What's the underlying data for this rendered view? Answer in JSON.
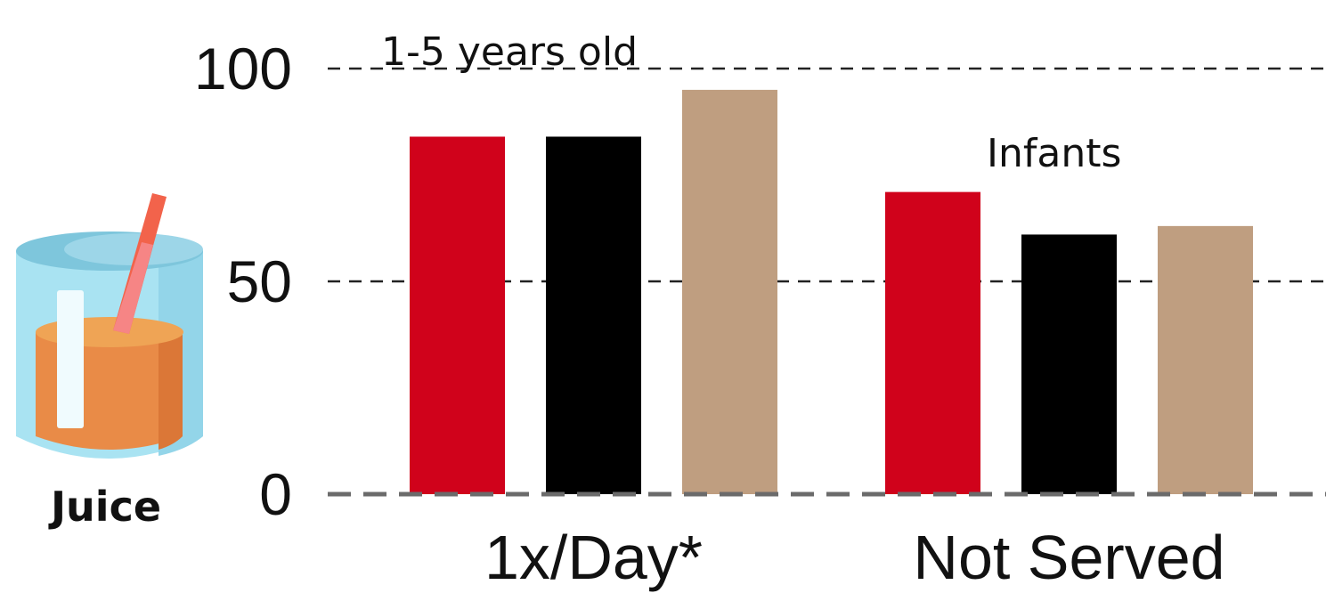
{
  "icon": {
    "name": "juice-glass-icon",
    "label": "Juice"
  },
  "colors": {
    "series": [
      "#d0021b",
      "#000000",
      "#bf9e80"
    ],
    "grid": "#222222",
    "baseline": "#6b6b6b"
  },
  "annotations": [
    "1-5 years old",
    "Infants"
  ],
  "chart_data": {
    "type": "bar",
    "categories": [
      "1x/Day*",
      "Not Served"
    ],
    "series": [
      {
        "values": [
          84,
          71
        ]
      },
      {
        "values": [
          84,
          61
        ]
      },
      {
        "values": [
          95,
          63
        ]
      }
    ],
    "yticks": [
      0,
      50,
      100
    ],
    "ylim": [
      0,
      100
    ],
    "grid": "dashed horizontal",
    "xlabel": "",
    "ylabel": ""
  }
}
